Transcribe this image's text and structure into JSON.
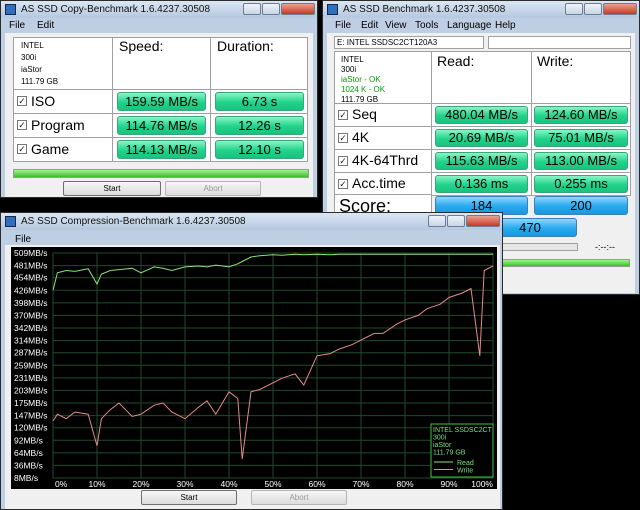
{
  "copy_window": {
    "title": "AS SSD Copy-Benchmark 1.6.4237.30508",
    "menu": [
      "File",
      "Edit"
    ],
    "drive": [
      "INTEL",
      "300i",
      "iaStor",
      "111.79 GB"
    ],
    "headers": [
      "Speed:",
      "Duration:"
    ],
    "rows": [
      {
        "name": "ISO",
        "speed": "159.59 MB/s",
        "duration": "6.73 s"
      },
      {
        "name": "Program",
        "speed": "114.76 MB/s",
        "duration": "12.26 s"
      },
      {
        "name": "Game",
        "speed": "114.13 MB/s",
        "duration": "12.10 s"
      }
    ],
    "buttons": [
      "Start",
      "Abort"
    ]
  },
  "benchmark_window": {
    "title": "AS SSD Benchmark 1.6.4237.30508",
    "menu": [
      "File",
      "Edit",
      "View",
      "Tools",
      "Language",
      "Help"
    ],
    "drive_select": "E: INTEL SSDSC2CT120A3",
    "drive": [
      "INTEL",
      "300i",
      "iaStor - OK",
      "1024 K - OK",
      "111.79 GB"
    ],
    "headers": [
      "Read:",
      "Write:"
    ],
    "rows": [
      {
        "name": "Seq",
        "read": "480.04 MB/s",
        "write": "124.60 MB/s"
      },
      {
        "name": "4K",
        "read": "20.69 MB/s",
        "write": "75.01 MB/s"
      },
      {
        "name": "4K-64Thrd",
        "read": "115.63 MB/s",
        "write": "113.00 MB/s"
      },
      {
        "name": "Acc.time",
        "read": "0.136 ms",
        "write": "0.255 ms"
      }
    ],
    "score_label": "Score:",
    "score_read": "184",
    "score_write": "200",
    "score_total": "470",
    "time": "-:--:--"
  },
  "compression_window": {
    "title": "AS SSD Compression-Benchmark 1.6.4237.30508",
    "menu": [
      "File"
    ],
    "buttons": [
      "Start",
      "Abort"
    ],
    "chart_data": {
      "type": "line",
      "x": [
        0,
        1,
        3,
        5,
        8,
        10,
        11,
        13,
        15,
        18,
        20,
        23,
        25,
        27,
        30,
        33,
        35,
        37,
        40,
        42,
        43,
        45,
        47,
        50,
        52,
        55,
        57,
        60,
        63,
        65,
        68,
        70,
        73,
        75,
        78,
        80,
        83,
        85,
        88,
        90,
        93,
        95,
        97,
        98,
        100
      ],
      "series": [
        {
          "name": "Read",
          "color": "#8fe07a",
          "values": [
            426,
            465,
            470,
            468,
            474,
            440,
            462,
            470,
            472,
            475,
            465,
            478,
            475,
            470,
            478,
            480,
            478,
            482,
            478,
            485,
            490,
            500,
            503,
            505,
            504,
            506,
            505,
            506,
            505,
            506,
            506,
            506,
            506,
            506,
            506,
            506,
            506,
            506,
            506,
            506,
            506,
            506,
            506,
            506,
            506
          ]
        },
        {
          "name": "Write",
          "color": "#e58a86",
          "values": [
            135,
            150,
            140,
            155,
            150,
            80,
            140,
            160,
            175,
            145,
            150,
            170,
            175,
            155,
            140,
            165,
            180,
            150,
            200,
            185,
            50,
            200,
            205,
            220,
            230,
            240,
            215,
            280,
            285,
            295,
            305,
            315,
            330,
            330,
            350,
            360,
            370,
            385,
            395,
            410,
            420,
            430,
            280,
            470,
            480
          ]
        }
      ],
      "xlim": [
        0,
        100
      ],
      "xticks": [
        {
          "value": 0,
          "label": "0%"
        },
        {
          "value": 10,
          "label": "10%"
        },
        {
          "value": 20,
          "label": "20%"
        },
        {
          "value": 30,
          "label": "30%"
        },
        {
          "value": 40,
          "label": "40%"
        },
        {
          "value": 50,
          "label": "50%"
        },
        {
          "value": 60,
          "label": "60%"
        },
        {
          "value": 70,
          "label": "70%"
        },
        {
          "value": 80,
          "label": "80%"
        },
        {
          "value": 90,
          "label": "90%"
        },
        {
          "value": 100,
          "label": "100%"
        }
      ],
      "ylim": [
        8,
        509
      ],
      "yticks": [
        {
          "value": 509,
          "label": "509MB/s"
        },
        {
          "value": 481,
          "label": "481MB/s"
        },
        {
          "value": 454,
          "label": "454MB/s"
        },
        {
          "value": 426,
          "label": "426MB/s"
        },
        {
          "value": 398,
          "label": "398MB/s"
        },
        {
          "value": 370,
          "label": "370MB/s"
        },
        {
          "value": 342,
          "label": "342MB/s"
        },
        {
          "value": 314,
          "label": "314MB/s"
        },
        {
          "value": 287,
          "label": "287MB/s"
        },
        {
          "value": 259,
          "label": "259MB/s"
        },
        {
          "value": 231,
          "label": "231MB/s"
        },
        {
          "value": 203,
          "label": "203MB/s"
        },
        {
          "value": 175,
          "label": "175MB/s"
        },
        {
          "value": 147,
          "label": "147MB/s"
        },
        {
          "value": 120,
          "label": "120MB/s"
        },
        {
          "value": 92,
          "label": "92MB/s"
        },
        {
          "value": 64,
          "label": "64MB/s"
        },
        {
          "value": 36,
          "label": "36MB/s"
        },
        {
          "value": 8,
          "label": "8MB/s"
        }
      ],
      "grid": true,
      "legend_text": [
        "INTEL SSDSC2CT",
        "300i",
        "iaStor",
        "111.79 GB"
      ]
    }
  }
}
